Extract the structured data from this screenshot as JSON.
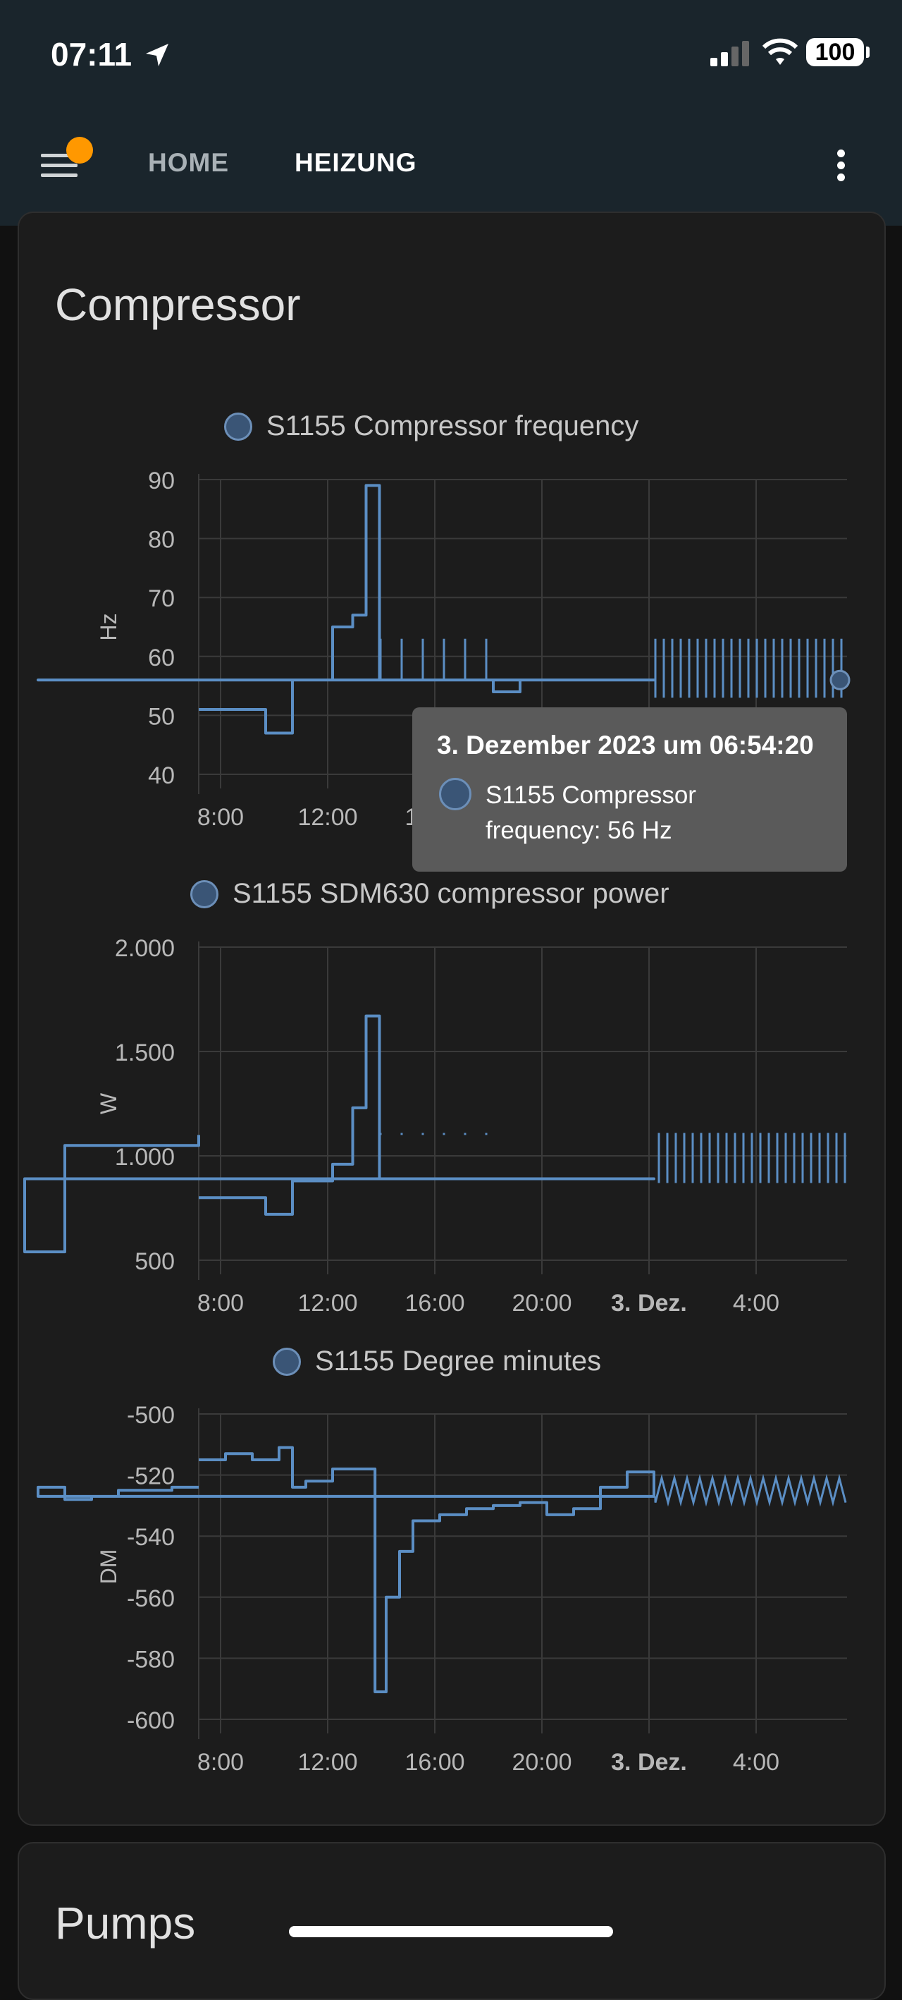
{
  "status_bar": {
    "time": "07:11",
    "battery": "100",
    "icons": [
      "location-arrow-icon",
      "signal-icon",
      "wifi-icon",
      "battery-icon"
    ]
  },
  "header": {
    "menu_icon": "hamburger-menu-icon",
    "tabs": [
      {
        "label": "HOME"
      },
      {
        "label": "HEIZUNG",
        "active": true
      }
    ],
    "overflow_icon": "more-vertical-icon"
  },
  "cards": [
    {
      "title": "Compressor"
    },
    {
      "title": "Pumps"
    }
  ],
  "colors": {
    "series": "#5b8ec4",
    "background": "#1c1c1c",
    "accent": "#ff9800"
  },
  "tooltip": {
    "title": "3. Dezember 2023 um 06:54:20",
    "text": "S1155 Compressor frequency: 56 Hz"
  },
  "chart_data": [
    {
      "type": "line",
      "legend": "S1155 Compressor frequency",
      "ylabel": "Hz",
      "ylim": [
        40,
        90
      ],
      "yticks": [
        "40",
        "50",
        "60",
        "70",
        "80",
        "90"
      ],
      "xticks": [
        "8:00",
        "12:00",
        "16:00",
        "20:00",
        "3. Dez.",
        "4:00"
      ],
      "x": [
        "07:00",
        "09:00",
        "09:30",
        "10:00",
        "10:30",
        "11:00",
        "12:00",
        "12:45",
        "13:15",
        "13:45",
        "14:00",
        "15:00",
        "16:00",
        "18:00",
        "19:00",
        "20:00",
        "21:00",
        "22:00",
        "23:00",
        "3. Dez. 00:00",
        "01:00",
        "02:00",
        "03:00",
        "04:00",
        "05:00",
        "06:00",
        "06:54"
      ],
      "y": [
        51,
        51,
        47,
        47,
        56,
        56,
        65,
        67,
        89,
        56,
        56,
        56,
        56,
        54,
        56,
        56,
        56,
        56,
        56,
        56,
        56,
        56,
        56,
        56,
        56,
        56,
        56
      ]
    },
    {
      "type": "line",
      "legend": "S1155 SDM630 compressor power",
      "ylabel": "W",
      "ylim": [
        500,
        2000
      ],
      "yticks": [
        "500",
        "1.000",
        "1.500",
        "2.000"
      ],
      "xticks": [
        "8:00",
        "12:00",
        "16:00",
        "20:00",
        "3. Dez.",
        "4:00"
      ],
      "x": [
        "07:00",
        "09:00",
        "09:30",
        "10:30",
        "11:30",
        "12:00",
        "12:45",
        "13:15",
        "13:45",
        "14:30",
        "16:00",
        "18:00",
        "20:00",
        "22:00",
        "3. Dez. 00:00",
        "00:30",
        "02:00",
        "04:00",
        "06:00",
        "07:00"
      ],
      "y": [
        800,
        800,
        720,
        880,
        880,
        960,
        1230,
        1670,
        890,
        890,
        890,
        890,
        890,
        890,
        890,
        540,
        1050,
        1050,
        1050,
        1100
      ]
    },
    {
      "type": "line",
      "legend": "S1155 Degree minutes",
      "ylabel": "DM",
      "ylim": [
        -600,
        -500
      ],
      "yticks": [
        "-500",
        "-520",
        "-540",
        "-560",
        "-580",
        "-600"
      ],
      "xticks": [
        "8:00",
        "12:00",
        "16:00",
        "20:00",
        "3. Dez.",
        "4:00"
      ],
      "x": [
        "07:00",
        "08:00",
        "09:00",
        "10:00",
        "10:30",
        "11:00",
        "12:00",
        "13:15",
        "13:35",
        "14:00",
        "14:30",
        "15:00",
        "16:00",
        "17:00",
        "18:00",
        "19:00",
        "20:00",
        "21:00",
        "22:00",
        "23:00",
        "3. Dez. 00:00",
        "01:00",
        "02:00",
        "03:00",
        "04:00",
        "05:00",
        "06:00",
        "07:00"
      ],
      "y": [
        -515,
        -513,
        -515,
        -511,
        -524,
        -522,
        -518,
        -518,
        -591,
        -560,
        -545,
        -535,
        -533,
        -531,
        -530,
        -529,
        -533,
        -531,
        -524,
        -519,
        -527,
        -524,
        -528,
        -527,
        -525,
        -525,
        -524,
        -524
      ]
    }
  ]
}
